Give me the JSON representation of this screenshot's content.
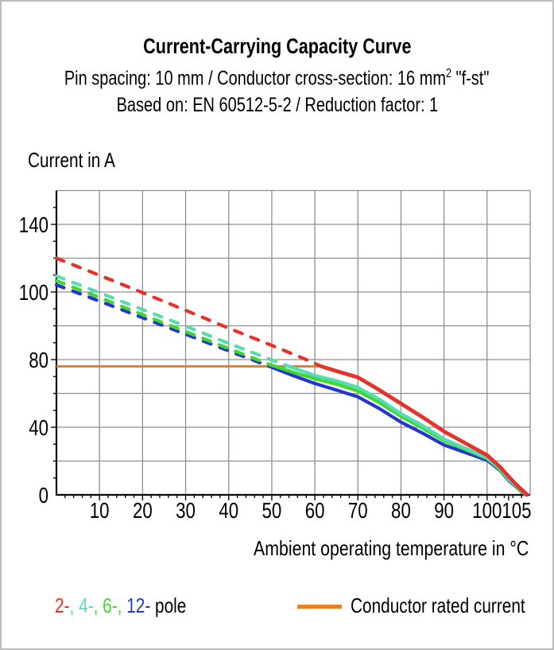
{
  "title": {
    "line1": "Current-Carrying Capacity Curve",
    "line2_prefix": "Pin spacing: 10 mm / Conductor cross-section: 16 mm",
    "line2_sup": "2",
    "line2_suffix": " \"f-st\"",
    "line3": "Based on: EN 60512-5-2 / Reduction factor: 1"
  },
  "labels": {
    "y_axis_title": "Current in A",
    "x_axis_title": "Ambient operating temperature in °C"
  },
  "legend": {
    "pole_segments": [
      {
        "text": "2-",
        "color": "#e5322a"
      },
      {
        "text": ", ",
        "color": "#55dcb2"
      },
      {
        "text": "4-",
        "color": "#55dcb2"
      },
      {
        "text": ", ",
        "color": "#41d72e"
      },
      {
        "text": "6-",
        "color": "#41d72e"
      },
      {
        "text": ", ",
        "color": "#41d72e"
      },
      {
        "text": "12-",
        "color": "#2336cf"
      },
      {
        "text": " pole",
        "color": "#000000"
      }
    ],
    "rated_label": "Conductor rated current",
    "rated_color": "#ee7f1d"
  },
  "chart_data": {
    "type": "line",
    "title": "Current-Carrying Capacity Curve",
    "xlabel": "Ambient operating temperature in °C",
    "ylabel": "Current in A",
    "x_range": [
      0,
      110
    ],
    "x_tick_values": [
      10,
      20,
      30,
      40,
      50,
      60,
      70,
      80,
      90,
      100,
      105
    ],
    "y_tick_values": [
      0,
      40,
      80,
      100,
      140
    ],
    "y_axis_style": "labeled ticks evenly spaced with one unlabeled gridline between each pair (non-linear scale); grid on",
    "line_style_rule": "curves dashed above conductor rated current, solid below",
    "rated": {
      "label": "Conductor rated current",
      "current_A": 76,
      "line_span_T": [
        0,
        61.5
      ],
      "color": "#ee7f1d"
    },
    "series": [
      {
        "name": "2-pole",
        "color": "#e5322a",
        "points_dashed": [
          [
            0,
            120
          ],
          [
            10,
            109.9
          ],
          [
            20,
            99.8
          ],
          [
            30,
            94.6
          ],
          [
            40,
            89.3
          ],
          [
            50,
            84.2
          ],
          [
            58,
            80
          ],
          [
            61.5,
            76
          ]
        ],
        "points_solid": [
          [
            61.5,
            76
          ],
          [
            66,
            72.5
          ],
          [
            70,
            69.5
          ],
          [
            75,
            62
          ],
          [
            80,
            54
          ],
          [
            85,
            46
          ],
          [
            90,
            37.5
          ],
          [
            95,
            30.5
          ],
          [
            100,
            23.5
          ],
          [
            103,
            16.5
          ],
          [
            105,
            10.8
          ],
          [
            107,
            5.5
          ],
          [
            108.5,
            2
          ],
          [
            109.3,
            0
          ]
        ]
      },
      {
        "name": "4-pole",
        "color": "#55dcb2",
        "points_dashed": [
          [
            0,
            109.4
          ],
          [
            10,
            99.8
          ],
          [
            20,
            94.8
          ],
          [
            30,
            89.9
          ],
          [
            40,
            84.8
          ],
          [
            50,
            79.8
          ],
          [
            54,
            76
          ]
        ],
        "points_solid": [
          [
            54,
            76
          ],
          [
            60,
            70.6
          ],
          [
            65,
            67.5
          ],
          [
            70,
            63.6
          ],
          [
            75,
            56.5
          ],
          [
            80,
            48
          ],
          [
            85,
            41
          ],
          [
            90,
            33
          ],
          [
            95,
            27.5
          ],
          [
            100,
            22
          ],
          [
            103,
            15.5
          ],
          [
            105,
            9.5
          ],
          [
            107,
            4.8
          ],
          [
            108.3,
            1.8
          ],
          [
            109.2,
            0
          ]
        ]
      },
      {
        "name": "6-pole",
        "color": "#41d72e",
        "points_dashed": [
          [
            0,
            106.6
          ],
          [
            10,
            98.4
          ],
          [
            20,
            93.3
          ],
          [
            30,
            88.3
          ],
          [
            40,
            83.3
          ],
          [
            50,
            76.6
          ],
          [
            50.8,
            76
          ]
        ],
        "points_solid": [
          [
            50.8,
            76
          ],
          [
            55,
            72.5
          ],
          [
            60,
            68.7
          ],
          [
            65,
            65.5
          ],
          [
            70,
            61.4
          ],
          [
            75,
            54.5
          ],
          [
            80,
            46.5
          ],
          [
            85,
            39.5
          ],
          [
            90,
            32
          ],
          [
            95,
            26.8
          ],
          [
            100,
            21.5
          ],
          [
            103,
            15
          ],
          [
            105,
            9
          ],
          [
            107,
            4.5
          ],
          [
            108.2,
            1.7
          ],
          [
            109.1,
            0
          ]
        ]
      },
      {
        "name": "12-pole",
        "color": "#2336cf",
        "points_dashed": [
          [
            0,
            104.2
          ],
          [
            10,
            97.3
          ],
          [
            20,
            92.4
          ],
          [
            30,
            87.5
          ],
          [
            40,
            82.6
          ],
          [
            49.5,
            76
          ]
        ],
        "points_solid": [
          [
            49.5,
            76
          ],
          [
            55,
            70.5
          ],
          [
            60,
            65.9
          ],
          [
            65,
            62
          ],
          [
            70,
            58
          ],
          [
            75,
            51
          ],
          [
            80,
            43
          ],
          [
            85,
            36.5
          ],
          [
            90,
            29.5
          ],
          [
            95,
            25
          ],
          [
            100,
            20.5
          ],
          [
            103,
            14.5
          ],
          [
            105,
            8.5
          ],
          [
            107,
            4.2
          ],
          [
            108.1,
            1.6
          ],
          [
            109,
            0
          ]
        ]
      }
    ]
  }
}
